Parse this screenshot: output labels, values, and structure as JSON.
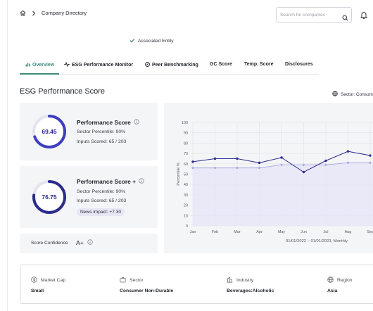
{
  "breadcrumb": {
    "items": [
      "Company Directory"
    ]
  },
  "search": {
    "placeholder": "Search for companies"
  },
  "entity": {
    "label": "Associated Entity"
  },
  "tabs": [
    {
      "label": "Overview",
      "active": true
    },
    {
      "label": "ESG Performance Monitor",
      "active": false
    },
    {
      "label": "Peer Benchmarking",
      "active": false
    },
    {
      "label": "GC Score",
      "active": false
    },
    {
      "label": "Temp. Score",
      "active": false
    },
    {
      "label": "Disclosures",
      "active": false
    }
  ],
  "section": {
    "title": "ESG Performance Score"
  },
  "sector_note": {
    "text": "Sector: Consum"
  },
  "scores": [
    {
      "title": "Performance Score",
      "value": "69.45",
      "fraction": 0.6945,
      "percentile": "Sector Percentile: 90%",
      "inputs": "Inputs Scored: 65 / 203"
    },
    {
      "title": "Performance Score +",
      "value": "76.75",
      "fraction": 0.7675,
      "percentile": "Sector Percentile: 90%",
      "inputs": "Inputs Scored: 65 / 203",
      "news": "News impact: +7.30"
    }
  ],
  "confidence": {
    "label": "Score Confidence",
    "grade": "A+"
  },
  "chart_data": {
    "type": "line",
    "categories": [
      "Jan",
      "Feb",
      "Mar",
      "Apr",
      "May",
      "Jun",
      "Jul",
      "Aug",
      "Sep"
    ],
    "series": [
      {
        "values": [
          62,
          65,
          65,
          61,
          66,
          52,
          63,
          72,
          68
        ]
      },
      {
        "values": [
          56,
          56,
          56,
          56,
          59,
          59,
          59,
          61,
          61
        ]
      }
    ],
    "ylabel": "Percentile %",
    "xlabel": "01/01/2022 – 01/01/2023, Monthly",
    "yticks": [
      0,
      10,
      20,
      30,
      40,
      50,
      60,
      70,
      80,
      90,
      100
    ],
    "ylim": [
      0,
      100
    ],
    "grid": true,
    "colors": {
      "primary": "#2c2c8e",
      "secondary": "#9ea1e4",
      "fill": "#e6e6f7"
    }
  },
  "company_info": [
    {
      "label": "Market Cap",
      "value": "Small",
      "icon": "coin-icon"
    },
    {
      "label": "Sector",
      "value": "Consumer Non-Durable",
      "icon": "briefcase-icon"
    },
    {
      "label": "Industry",
      "value": "Beverages:Alcoholic",
      "icon": "building-icon"
    },
    {
      "label": "Region",
      "value": "Asia",
      "icon": "globe-icon"
    }
  ],
  "colors": {
    "accent": "#3d8b7d",
    "ring": "#3e3ec0",
    "ring_track": "#e3e4ee"
  }
}
